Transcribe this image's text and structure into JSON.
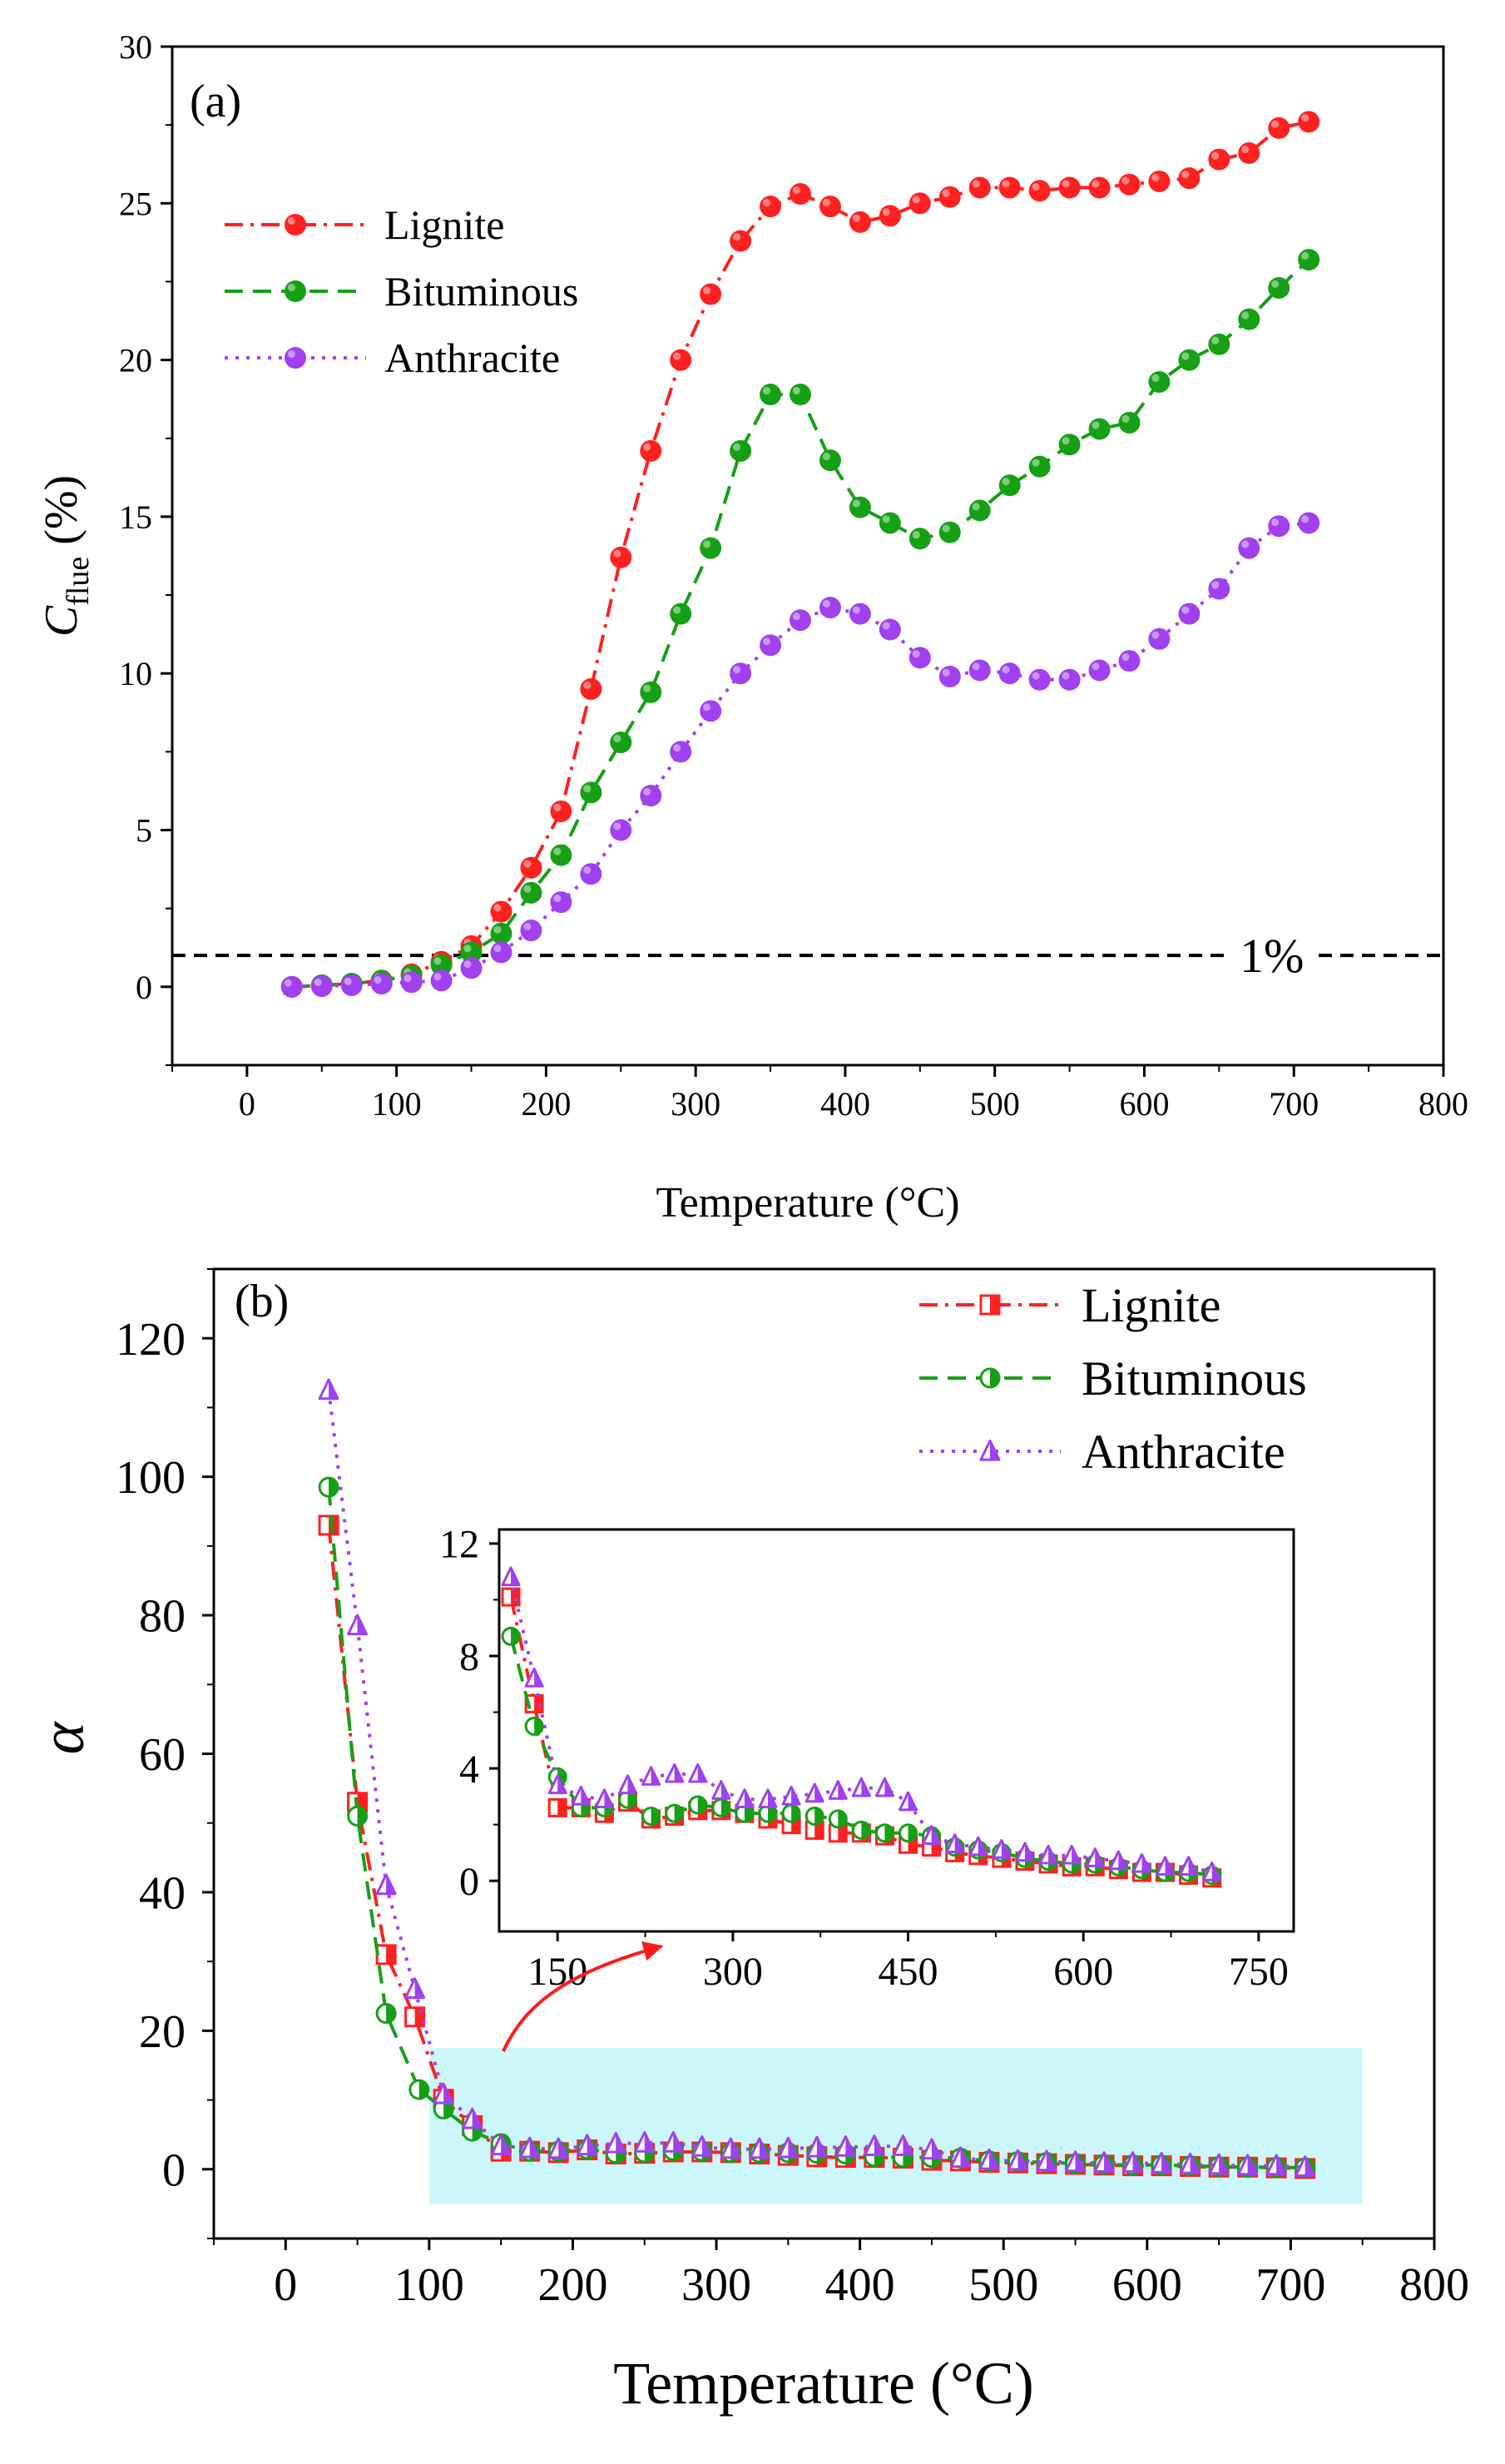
{
  "chart_data": [
    {
      "panel_label": "(a)",
      "type": "line",
      "xlabel": "Temperature (°C)",
      "ylabel_main": "C",
      "ylabel_sub": "flue",
      "ylabel_suffix": " (%)",
      "xlim": [
        -50,
        800
      ],
      "ylim": [
        -2.5,
        30
      ],
      "xticks": [
        0,
        100,
        200,
        300,
        400,
        500,
        600,
        700,
        800
      ],
      "yticks": [
        0,
        5,
        10,
        15,
        20,
        25,
        30
      ],
      "x": [
        30,
        50,
        70,
        90,
        110,
        130,
        150,
        170,
        190,
        210,
        230,
        250,
        270,
        290,
        310,
        330,
        350,
        370,
        390,
        410,
        430,
        450,
        470,
        490,
        510,
        530,
        550,
        570,
        590,
        610,
        630,
        650,
        670,
        690,
        710
      ],
      "series": [
        {
          "name": "Lignite",
          "color": "#ff2020",
          "dash": "dashdot",
          "values": [
            0,
            0.05,
            0.1,
            0.2,
            0.4,
            0.8,
            1.3,
            2.4,
            3.8,
            5.6,
            9.5,
            13.7,
            17.1,
            20.0,
            22.1,
            23.8,
            24.9,
            25.3,
            24.9,
            24.4,
            24.6,
            25.0,
            25.2,
            25.5,
            25.5,
            25.4,
            25.5,
            25.5,
            25.6,
            25.7,
            25.8,
            26.4,
            26.6,
            27.4,
            27.6
          ]
        },
        {
          "name": "Bituminous",
          "color": "#15a015",
          "dash": "dash",
          "values": [
            0,
            0.05,
            0.1,
            0.2,
            0.35,
            0.7,
            1.1,
            1.7,
            3.0,
            4.2,
            6.2,
            7.8,
            9.4,
            11.9,
            14.0,
            17.1,
            18.9,
            18.9,
            16.8,
            15.3,
            14.8,
            14.3,
            14.5,
            15.2,
            16.0,
            16.6,
            17.3,
            17.8,
            18.0,
            19.3,
            20.0,
            20.5,
            21.3,
            22.3,
            23.2
          ]
        },
        {
          "name": "Anthracite",
          "color": "#a040f0",
          "dash": "dot",
          "values": [
            0,
            0.02,
            0.05,
            0.1,
            0.15,
            0.2,
            0.6,
            1.1,
            1.8,
            2.7,
            3.6,
            5.0,
            6.1,
            7.5,
            8.8,
            10.0,
            10.9,
            11.7,
            12.1,
            11.9,
            11.4,
            10.5,
            9.9,
            10.1,
            10.0,
            9.8,
            9.8,
            10.1,
            10.4,
            11.1,
            11.9,
            12.7,
            14.0,
            14.7,
            14.8
          ]
        }
      ],
      "reference_line": {
        "y": 1,
        "label": "1%"
      },
      "legend_position": "top-left"
    },
    {
      "panel_label": "(b)",
      "type": "line",
      "xlabel": "Temperature (°C)",
      "ylabel": "α",
      "xlim": [
        -50,
        800
      ],
      "ylim": [
        -10,
        130
      ],
      "xticks": [
        0,
        100,
        200,
        300,
        400,
        500,
        600,
        700,
        800
      ],
      "yticks": [
        0,
        20,
        40,
        60,
        80,
        100,
        120
      ],
      "x": [
        30,
        50,
        70,
        90,
        110,
        130,
        150,
        170,
        190,
        210,
        230,
        250,
        270,
        290,
        310,
        330,
        350,
        370,
        390,
        410,
        430,
        450,
        470,
        490,
        510,
        530,
        550,
        570,
        590,
        610,
        630,
        650,
        670,
        690,
        710
      ],
      "x_bituminous": [
        30,
        50,
        70,
        93,
        110,
        130,
        150,
        170,
        190,
        210,
        230,
        250,
        270,
        290,
        310,
        330,
        350,
        370,
        390,
        410,
        430,
        450,
        470,
        490,
        510,
        530,
        550,
        570,
        590,
        610,
        630,
        650,
        670,
        690,
        710
      ],
      "series": [
        {
          "name": "Lignite",
          "color": "#ff2020",
          "dash": "dashdot",
          "marker": "half-square",
          "values": [
            93,
            53,
            31,
            22,
            10.1,
            6.3,
            2.6,
            2.6,
            2.4,
            2.8,
            2.2,
            2.3,
            2.5,
            2.5,
            2.4,
            2.2,
            2.0,
            1.8,
            1.7,
            1.7,
            1.6,
            1.3,
            1.2,
            1.0,
            0.9,
            0.8,
            0.7,
            0.6,
            0.5,
            0.5,
            0.4,
            0.3,
            0.3,
            0.2,
            0.1
          ]
        },
        {
          "name": "Bituminous",
          "color": "#15a015",
          "dash": "dash",
          "marker": "half-circle",
          "values": [
            98.5,
            51,
            22.5,
            11.5,
            8.7,
            5.5,
            3.7,
            2.6,
            2.6,
            2.9,
            2.3,
            2.4,
            2.7,
            2.6,
            2.4,
            2.4,
            2.4,
            2.3,
            2.2,
            1.8,
            1.7,
            1.7,
            1.6,
            1.2,
            1.1,
            1.0,
            0.8,
            0.7,
            0.6,
            0.6,
            0.5,
            0.4,
            0.3,
            0.3,
            0.2
          ]
        },
        {
          "name": "Anthracite",
          "color": "#a040f0",
          "dash": "dot",
          "marker": "half-triangle",
          "values": [
            112.5,
            78.5,
            41,
            26,
            10.8,
            7.2,
            3.4,
            3.0,
            2.9,
            3.4,
            3.7,
            3.8,
            3.8,
            3.2,
            2.9,
            2.9,
            3.0,
            3.1,
            3.2,
            3.3,
            3.3,
            2.8,
            1.6,
            1.3,
            1.2,
            1.1,
            1.0,
            0.9,
            0.9,
            0.8,
            0.7,
            0.6,
            0.5,
            0.5,
            0.3
          ]
        }
      ],
      "legend_position": "top-right",
      "highlight_region": {
        "x": [
          100,
          750
        ],
        "y": [
          -5,
          17.5
        ],
        "color": "#ccf7fa"
      },
      "inset": {
        "xlim": [
          100,
          780
        ],
        "ylim": [
          -1.8,
          12.5
        ],
        "xticks": [
          150,
          300,
          450,
          600,
          750
        ],
        "yticks": [
          0,
          4,
          8,
          12
        ],
        "x_start_index": 4
      }
    }
  ]
}
